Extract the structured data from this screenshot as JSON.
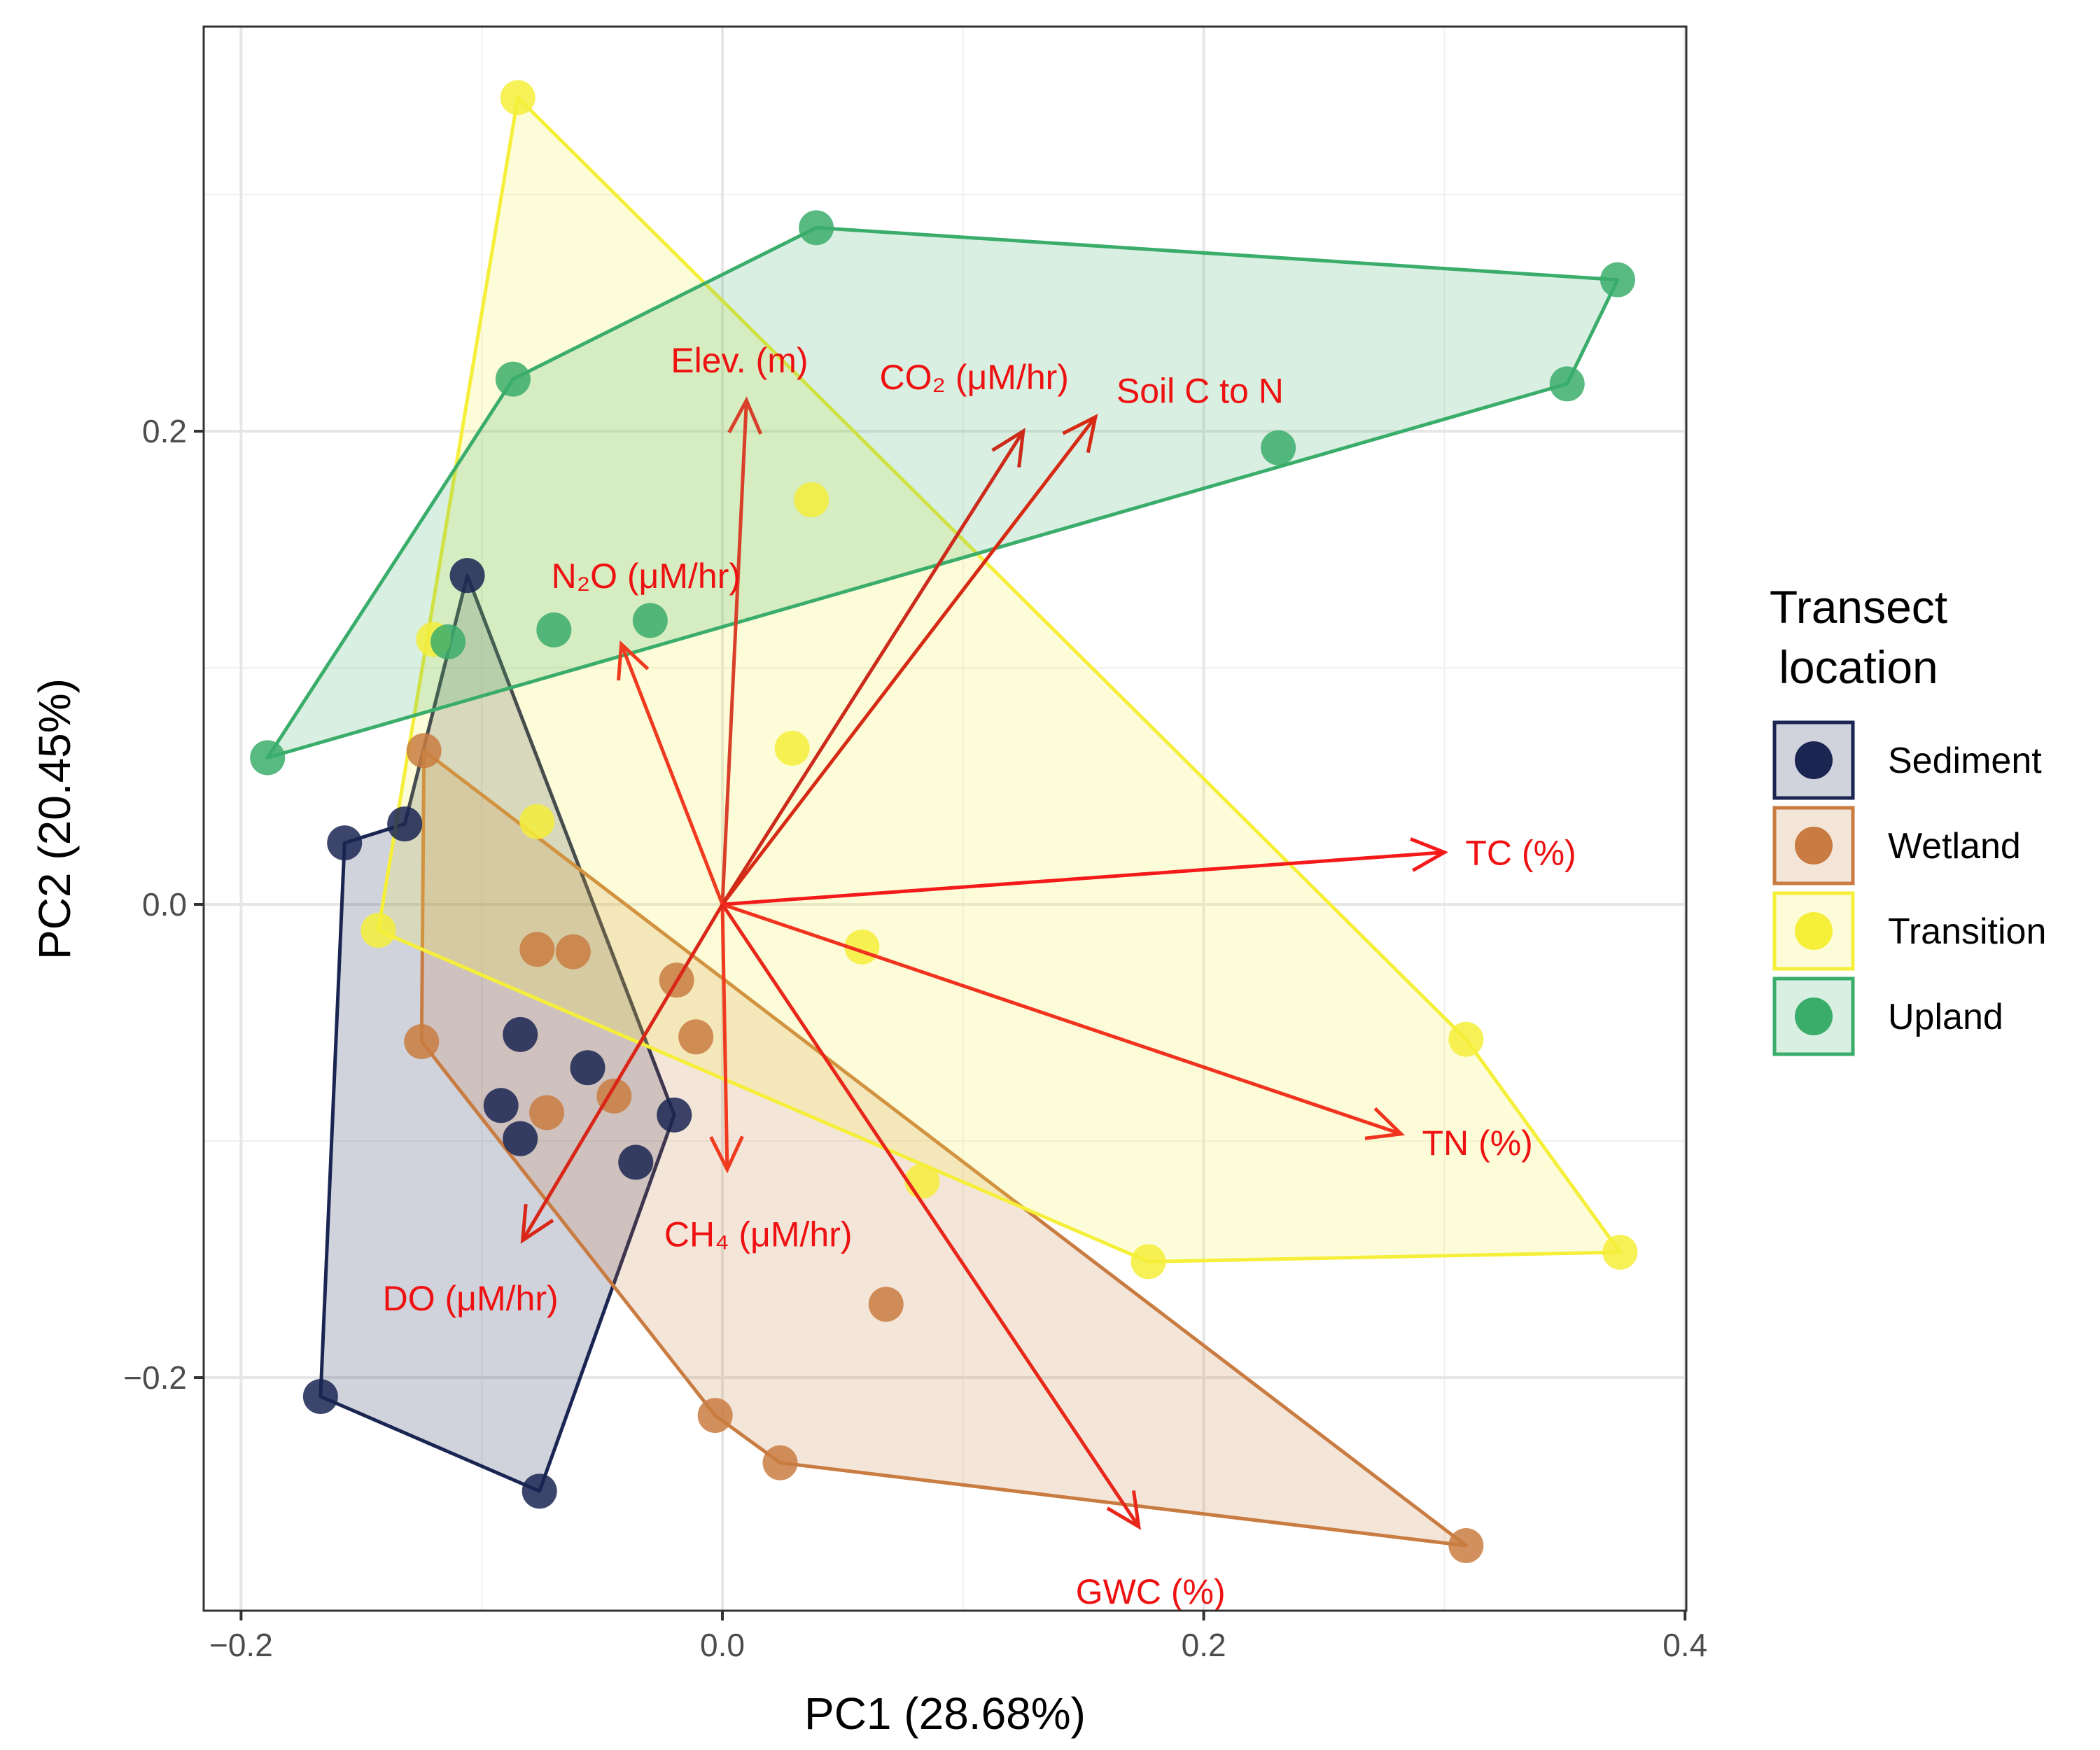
{
  "chart_data": {
    "type": "scatter",
    "subtype": "pca-biplot",
    "xlabel": "PC1 (28.68%)",
    "ylabel": "PC2 (20.45%)",
    "xlim": [
      -0.215,
      0.405
    ],
    "ylim": [
      -0.3,
      0.37
    ],
    "x_ticks": [
      -0.2,
      0.0,
      0.2,
      0.4
    ],
    "x_tick_labels": [
      "−0.2",
      "0.0",
      "0.2",
      "0.4"
    ],
    "y_ticks": [
      -0.2,
      0.0,
      0.2
    ],
    "y_tick_labels": [
      "−0.2",
      "0.0",
      "0.2"
    ],
    "grid": true,
    "legend": {
      "title_lines": [
        "Transect",
        "location"
      ],
      "position": "right"
    },
    "series": [
      {
        "name": "Sediment",
        "color": "#1a2552",
        "fill": "#1a2552",
        "points": [
          [
            -0.157,
            0.026
          ],
          [
            -0.132,
            0.034
          ],
          [
            -0.106,
            0.139
          ],
          [
            -0.084,
            -0.055
          ],
          [
            -0.056,
            -0.069
          ],
          [
            -0.092,
            -0.085
          ],
          [
            -0.084,
            -0.099
          ],
          [
            -0.036,
            -0.109
          ],
          [
            -0.02,
            -0.089
          ],
          [
            -0.167,
            -0.208
          ],
          [
            -0.076,
            -0.248
          ]
        ],
        "hull": [
          [
            -0.106,
            0.139
          ],
          [
            -0.02,
            -0.089
          ],
          [
            -0.076,
            -0.248
          ],
          [
            -0.167,
            -0.208
          ],
          [
            -0.157,
            0.026
          ],
          [
            -0.132,
            0.034
          ]
        ]
      },
      {
        "name": "Wetland",
        "color": "#c97c41",
        "fill": "#c97c41",
        "points": [
          [
            -0.124,
            0.065
          ],
          [
            -0.077,
            -0.019
          ],
          [
            -0.062,
            -0.02
          ],
          [
            -0.019,
            -0.032
          ],
          [
            -0.011,
            -0.056
          ],
          [
            -0.125,
            -0.058
          ],
          [
            -0.045,
            -0.081
          ],
          [
            -0.073,
            -0.088
          ],
          [
            0.068,
            -0.169
          ],
          [
            -0.003,
            -0.216
          ],
          [
            0.024,
            -0.236
          ],
          [
            0.309,
            -0.271
          ]
        ],
        "hull": [
          [
            -0.124,
            0.065
          ],
          [
            0.309,
            -0.271
          ],
          [
            0.024,
            -0.236
          ],
          [
            -0.003,
            -0.216
          ],
          [
            -0.125,
            -0.058
          ]
        ]
      },
      {
        "name": "Transition",
        "color": "#f5ef3a",
        "fill": "#f5ef3a",
        "points": [
          [
            -0.085,
            0.341
          ],
          [
            0.037,
            0.171
          ],
          [
            -0.12,
            0.112
          ],
          [
            0.029,
            0.066
          ],
          [
            -0.077,
            0.035
          ],
          [
            -0.143,
            -0.011
          ],
          [
            0.058,
            -0.018
          ],
          [
            0.309,
            -0.057
          ],
          [
            0.083,
            -0.117
          ],
          [
            0.177,
            -0.151
          ],
          [
            0.373,
            -0.147
          ]
        ],
        "hull": [
          [
            -0.085,
            0.341
          ],
          [
            0.309,
            -0.057
          ],
          [
            0.373,
            -0.147
          ],
          [
            0.177,
            -0.151
          ],
          [
            -0.143,
            -0.011
          ]
        ]
      },
      {
        "name": "Upland",
        "color": "#3bad6b",
        "fill": "#3bad6b",
        "points": [
          [
            0.039,
            0.286
          ],
          [
            0.372,
            0.264
          ],
          [
            -0.087,
            0.222
          ],
          [
            0.351,
            0.22
          ],
          [
            0.231,
            0.193
          ],
          [
            -0.07,
            0.116
          ],
          [
            -0.03,
            0.12
          ],
          [
            -0.114,
            0.111
          ],
          [
            -0.189,
            0.062
          ]
        ],
        "hull": [
          [
            0.039,
            0.286
          ],
          [
            0.372,
            0.264
          ],
          [
            0.351,
            0.22
          ],
          [
            -0.189,
            0.062
          ],
          [
            -0.087,
            0.222
          ]
        ]
      }
    ],
    "loadings": [
      {
        "label": "Elev. (m)",
        "x": 0.01,
        "y": 0.213,
        "color": "#d9402a"
      },
      {
        "label": "CO₂ (μM/hr)",
        "x": 0.125,
        "y": 0.2,
        "color": "#cc2a1a"
      },
      {
        "label": "Soil C to N",
        "x": 0.155,
        "y": 0.206,
        "color": "#d62a14"
      },
      {
        "label": "N₂O (μM/hr)",
        "x": -0.042,
        "y": 0.11,
        "color": "#f03a1f"
      },
      {
        "label": "TC (%)",
        "x": 0.3,
        "y": 0.022,
        "color": "#f51a1a"
      },
      {
        "label": "TN (%)",
        "x": 0.282,
        "y": -0.097,
        "color": "#f0321e"
      },
      {
        "label": "CH₄ (μM/hr)",
        "x": 0.002,
        "y": -0.112,
        "color": "#f03a1f"
      },
      {
        "label": "DO (μM/hr)",
        "x": -0.083,
        "y": -0.142,
        "color": "#d92618"
      },
      {
        "label": "GWC (%)",
        "x": 0.173,
        "y": -0.263,
        "color": "#e8261a"
      }
    ]
  }
}
